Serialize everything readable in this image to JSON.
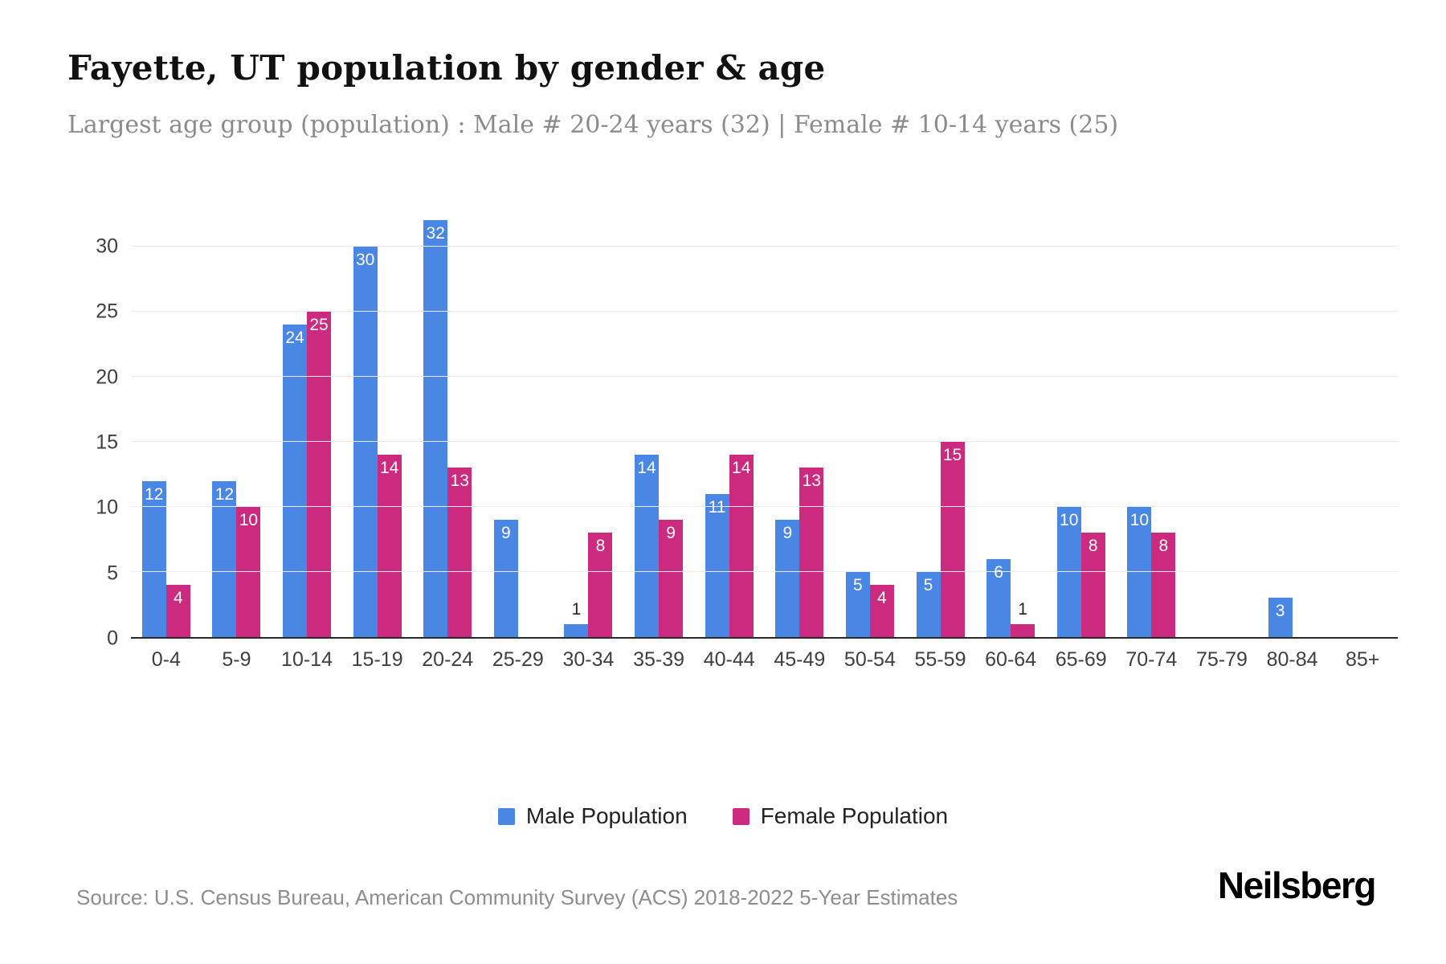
{
  "header": {
    "title": "Fayette, UT population by gender & age",
    "subtitle": "Largest age group (population) : Male # 20-24 years (32) | Female # 10-14 years (25)"
  },
  "chart_data": {
    "type": "bar",
    "title": "Fayette, UT population by gender & age",
    "categories": [
      "0-4",
      "5-9",
      "10-14",
      "15-19",
      "20-24",
      "25-29",
      "30-34",
      "35-39",
      "40-44",
      "45-49",
      "50-54",
      "55-59",
      "60-64",
      "65-69",
      "70-74",
      "75-79",
      "80-84",
      "85+"
    ],
    "series": [
      {
        "name": "Male Population",
        "color": "#4a86e4",
        "values": [
          12,
          12,
          24,
          30,
          32,
          9,
          1,
          14,
          11,
          9,
          5,
          5,
          6,
          10,
          10,
          0,
          3,
          0
        ]
      },
      {
        "name": "Female Population",
        "color": "#cb2a7f",
        "values": [
          4,
          10,
          25,
          14,
          13,
          0,
          8,
          9,
          14,
          13,
          4,
          15,
          1,
          8,
          8,
          0,
          0,
          0
        ]
      }
    ],
    "xlabel": "",
    "ylabel": "",
    "yticks": [
      0,
      5,
      10,
      15,
      20,
      25,
      30
    ],
    "ylim": [
      0,
      33.2
    ],
    "grid": true,
    "legend_position": "bottom"
  },
  "footer": {
    "source": "Source: U.S. Census Bureau, American Community Survey (ACS) 2018-2022 5-Year Estimates",
    "brand": "Neilsberg"
  }
}
